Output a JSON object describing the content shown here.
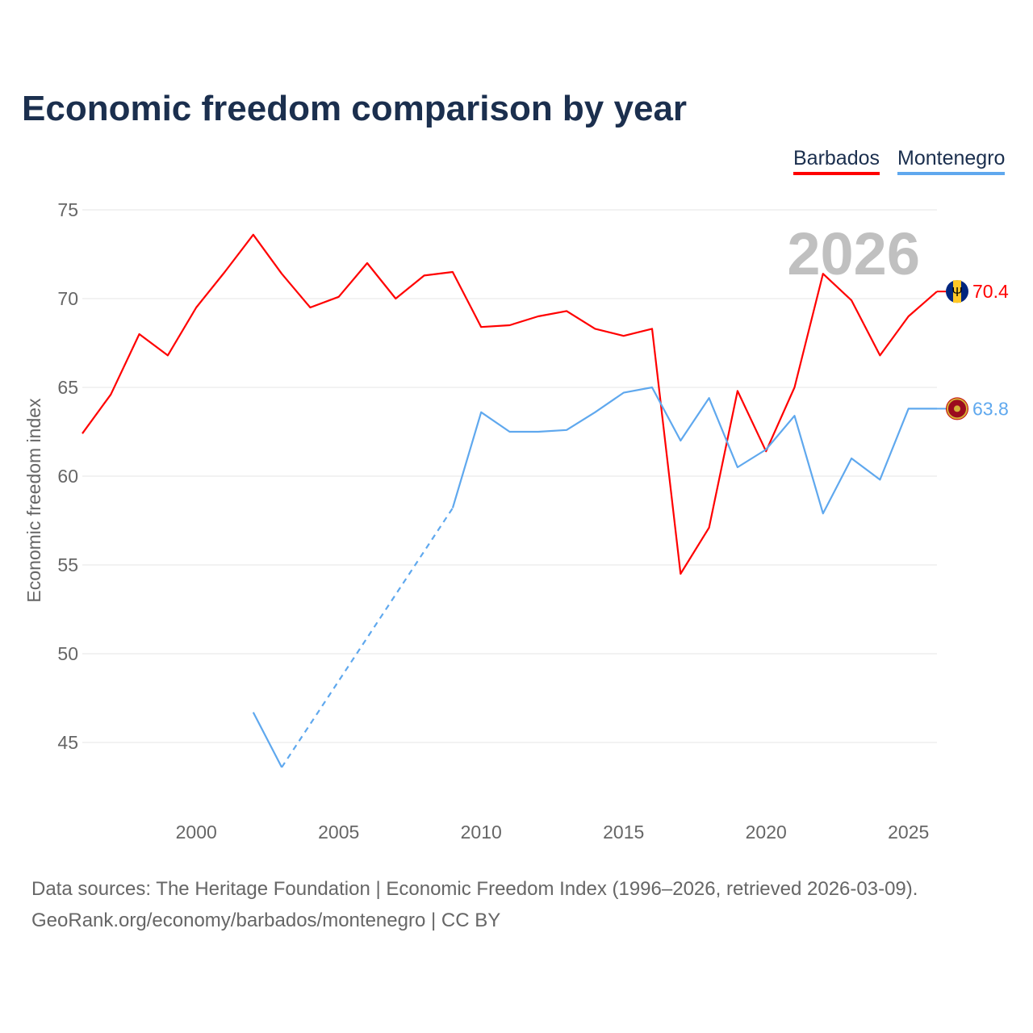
{
  "title": "Economic freedom comparison by year",
  "watermark_year": "2026",
  "footer": {
    "line1": "Data sources: The Heritage Foundation | Economic Freedom Index (1996–2026, retrieved 2026-03-09).",
    "line2": "GeoRank.org/economy/barbados/montenegro | CC BY"
  },
  "chart_data": {
    "type": "line",
    "title": "Economic freedom comparison by year",
    "xlabel": "",
    "ylabel": "Economic freedom index",
    "xlim": [
      1996,
      2026
    ],
    "ylim": [
      41,
      76
    ],
    "yticks": [
      45,
      50,
      55,
      60,
      65,
      70,
      75
    ],
    "xticks": [
      2000,
      2005,
      2010,
      2015,
      2020,
      2025
    ],
    "grid": true,
    "legend_placement": "top-right",
    "x": [
      1996,
      1997,
      1998,
      1999,
      2000,
      2001,
      2002,
      2003,
      2004,
      2005,
      2006,
      2007,
      2008,
      2009,
      2010,
      2011,
      2012,
      2013,
      2014,
      2015,
      2016,
      2017,
      2018,
      2019,
      2020,
      2021,
      2022,
      2023,
      2024,
      2025,
      2026
    ],
    "series": [
      {
        "name": "Barbados",
        "color": "#ff0000",
        "end_label": "70.4",
        "flag": "barbados-flag",
        "values": [
          62.4,
          64.6,
          68.0,
          66.8,
          69.5,
          71.5,
          73.6,
          71.4,
          69.5,
          70.1,
          72.0,
          70.0,
          71.3,
          71.5,
          68.4,
          68.5,
          69.0,
          69.3,
          68.3,
          67.9,
          68.3,
          54.5,
          57.1,
          64.8,
          61.4,
          65.0,
          71.4,
          69.9,
          66.8,
          69.0,
          70.4
        ]
      },
      {
        "name": "Montenegro",
        "color": "#5fa8ee",
        "end_label": "63.8",
        "flag": "montenegro-flag",
        "values": [
          null,
          null,
          null,
          null,
          null,
          null,
          46.7,
          43.6,
          null,
          null,
          null,
          null,
          null,
          58.2,
          63.6,
          62.5,
          62.5,
          62.6,
          63.6,
          64.7,
          65.0,
          62.0,
          64.4,
          60.5,
          61.5,
          63.4,
          57.9,
          61.0,
          59.8,
          63.8,
          63.8
        ]
      }
    ]
  }
}
